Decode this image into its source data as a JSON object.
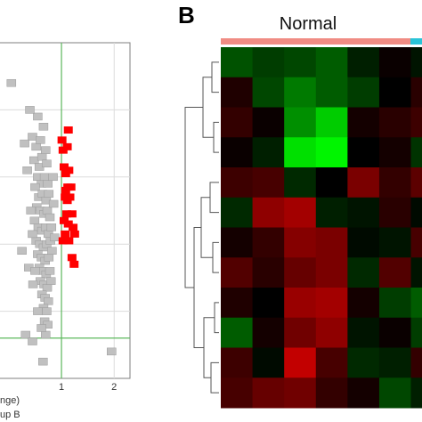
{
  "panels": {
    "left": {
      "x_tick_labels": [
        "1",
        "2"
      ],
      "label_fragments": [
        "nge)",
        "up B"
      ]
    },
    "right": {
      "panel_letter": "B",
      "group_label": "Normal"
    }
  },
  "colors": {
    "background": "#ffffff",
    "scatter_grey": "#c0c0c0",
    "scatter_grey_edge": "#9a9a9a",
    "highlight_red": "#ff0000",
    "threshold_green": "#5cb85c",
    "group_bar_normal": "#f08c84",
    "group_bar_other": "#29c4d8"
  },
  "chart_data": [
    {
      "type": "scatter",
      "xlim": [
        -0.2,
        2.3
      ],
      "ylim": [
        0,
        1
      ],
      "x_ticks": [
        1,
        2
      ],
      "x_threshold": 1.0,
      "y_threshold": 0.12,
      "grid": true,
      "series": [
        {
          "points": [
            [
              0.45,
              0.72
            ],
            [
              0.55,
              0.78
            ],
            [
              0.52,
              0.69
            ],
            [
              0.66,
              0.75
            ],
            [
              0.6,
              0.71
            ],
            [
              0.48,
              0.65
            ],
            [
              0.58,
              0.63
            ],
            [
              0.63,
              0.66
            ],
            [
              0.7,
              0.68
            ],
            [
              0.72,
              0.64
            ],
            [
              0.55,
              0.6
            ],
            [
              0.62,
              0.58
            ],
            [
              0.68,
              0.6
            ],
            [
              0.74,
              0.58
            ],
            [
              0.5,
              0.57
            ],
            [
              0.57,
              0.54
            ],
            [
              0.64,
              0.55
            ],
            [
              0.71,
              0.53
            ],
            [
              0.76,
              0.55
            ],
            [
              0.53,
              0.51
            ],
            [
              0.6,
              0.5
            ],
            [
              0.67,
              0.49
            ],
            [
              0.73,
              0.5
            ],
            [
              0.78,
              0.48
            ],
            [
              0.49,
              0.47
            ],
            [
              0.56,
              0.45
            ],
            [
              0.63,
              0.44
            ],
            [
              0.7,
              0.45
            ],
            [
              0.75,
              0.43
            ],
            [
              0.81,
              0.45
            ],
            [
              0.52,
              0.41
            ],
            [
              0.59,
              0.4
            ],
            [
              0.66,
              0.39
            ],
            [
              0.72,
              0.4
            ],
            [
              0.79,
              0.41
            ],
            [
              0.55,
              0.37
            ],
            [
              0.62,
              0.36
            ],
            [
              0.69,
              0.35
            ],
            [
              0.76,
              0.36
            ],
            [
              0.82,
              0.38
            ],
            [
              0.58,
              0.33
            ],
            [
              0.65,
              0.32
            ],
            [
              0.71,
              0.31
            ],
            [
              0.78,
              0.32
            ],
            [
              0.6,
              0.29
            ],
            [
              0.67,
              0.28
            ],
            [
              0.73,
              0.27
            ],
            [
              0.8,
              0.29
            ],
            [
              0.63,
              0.25
            ],
            [
              0.69,
              0.24
            ],
            [
              0.75,
              0.23
            ],
            [
              0.66,
              0.21
            ],
            [
              0.72,
              0.2
            ],
            [
              0.68,
              0.17
            ],
            [
              0.74,
              0.16
            ],
            [
              0.7,
              0.13
            ],
            [
              0.4,
              0.8
            ],
            [
              0.35,
              0.62
            ],
            [
              0.42,
              0.5
            ],
            [
              0.45,
              0.43
            ],
            [
              0.25,
              0.38
            ],
            [
              0.38,
              0.33
            ],
            [
              0.46,
              0.28
            ],
            [
              0.3,
              0.7
            ],
            [
              0.5,
              0.32
            ],
            [
              0.85,
              0.52
            ],
            [
              0.84,
              0.6
            ],
            [
              0.87,
              0.42
            ],
            [
              0.55,
              0.2
            ],
            [
              0.62,
              0.15
            ],
            [
              0.32,
              0.13
            ],
            [
              0.45,
              0.11
            ],
            [
              0.05,
              0.88
            ],
            [
              1.95,
              0.08
            ],
            [
              0.65,
              0.05
            ]
          ]
        },
        {
          "points": [
            [
              1.13,
              0.74
            ],
            [
              1.01,
              0.71
            ],
            [
              1.11,
              0.69
            ],
            [
              1.03,
              0.68
            ],
            [
              1.05,
              0.63
            ],
            [
              1.14,
              0.62
            ],
            [
              1.08,
              0.61
            ],
            [
              1.12,
              0.57
            ],
            [
              1.18,
              0.57
            ],
            [
              1.08,
              0.56
            ],
            [
              1.07,
              0.54
            ],
            [
              1.11,
              0.53
            ],
            [
              1.16,
              0.54
            ],
            [
              1.1,
              0.49
            ],
            [
              1.2,
              0.49
            ],
            [
              1.05,
              0.47
            ],
            [
              1.13,
              0.46
            ],
            [
              1.22,
              0.45
            ],
            [
              1.07,
              0.43
            ],
            [
              1.25,
              0.43
            ],
            [
              1.14,
              0.41
            ],
            [
              1.03,
              0.41
            ],
            [
              1.2,
              0.36
            ],
            [
              1.24,
              0.34
            ]
          ]
        }
      ]
    },
    {
      "type": "heatmap",
      "column_groups": [
        {
          "label": "Normal"
        }
      ],
      "values": [
        [
          -0.8,
          -0.6,
          -0.7,
          -0.9,
          -0.3,
          0.1,
          -0.2
        ],
        [
          0.3,
          -0.7,
          -1.2,
          -0.9,
          -0.6,
          0.0,
          0.4
        ],
        [
          0.5,
          0.1,
          -1.4,
          -2.0,
          0.2,
          0.4,
          0.6
        ],
        [
          0.1,
          -0.3,
          -2.2,
          -2.4,
          0.0,
          0.2,
          -0.5
        ],
        [
          0.6,
          0.7,
          -0.4,
          0.0,
          1.2,
          0.5,
          0.9
        ],
        [
          -0.4,
          1.4,
          1.6,
          -0.3,
          -0.2,
          0.4,
          -0.1
        ],
        [
          0.2,
          0.5,
          1.3,
          1.2,
          -0.1,
          -0.2,
          0.7
        ],
        [
          0.8,
          0.4,
          1.0,
          1.2,
          -0.4,
          0.8,
          -0.2
        ],
        [
          0.3,
          0.0,
          1.5,
          1.6,
          0.2,
          -0.6,
          -0.9
        ],
        [
          -0.9,
          0.2,
          1.1,
          1.4,
          -0.2,
          0.1,
          -0.6
        ],
        [
          0.6,
          -0.1,
          1.9,
          0.7,
          -0.4,
          -0.3,
          0.5
        ],
        [
          0.7,
          1.0,
          1.1,
          0.5,
          0.2,
          -0.7,
          -0.3
        ]
      ],
      "color_scale": [
        "#00ff00",
        "#000000",
        "#ff0000"
      ],
      "value_range": [
        -2.5,
        2.5
      ],
      "row_dendrogram": true
    }
  ]
}
